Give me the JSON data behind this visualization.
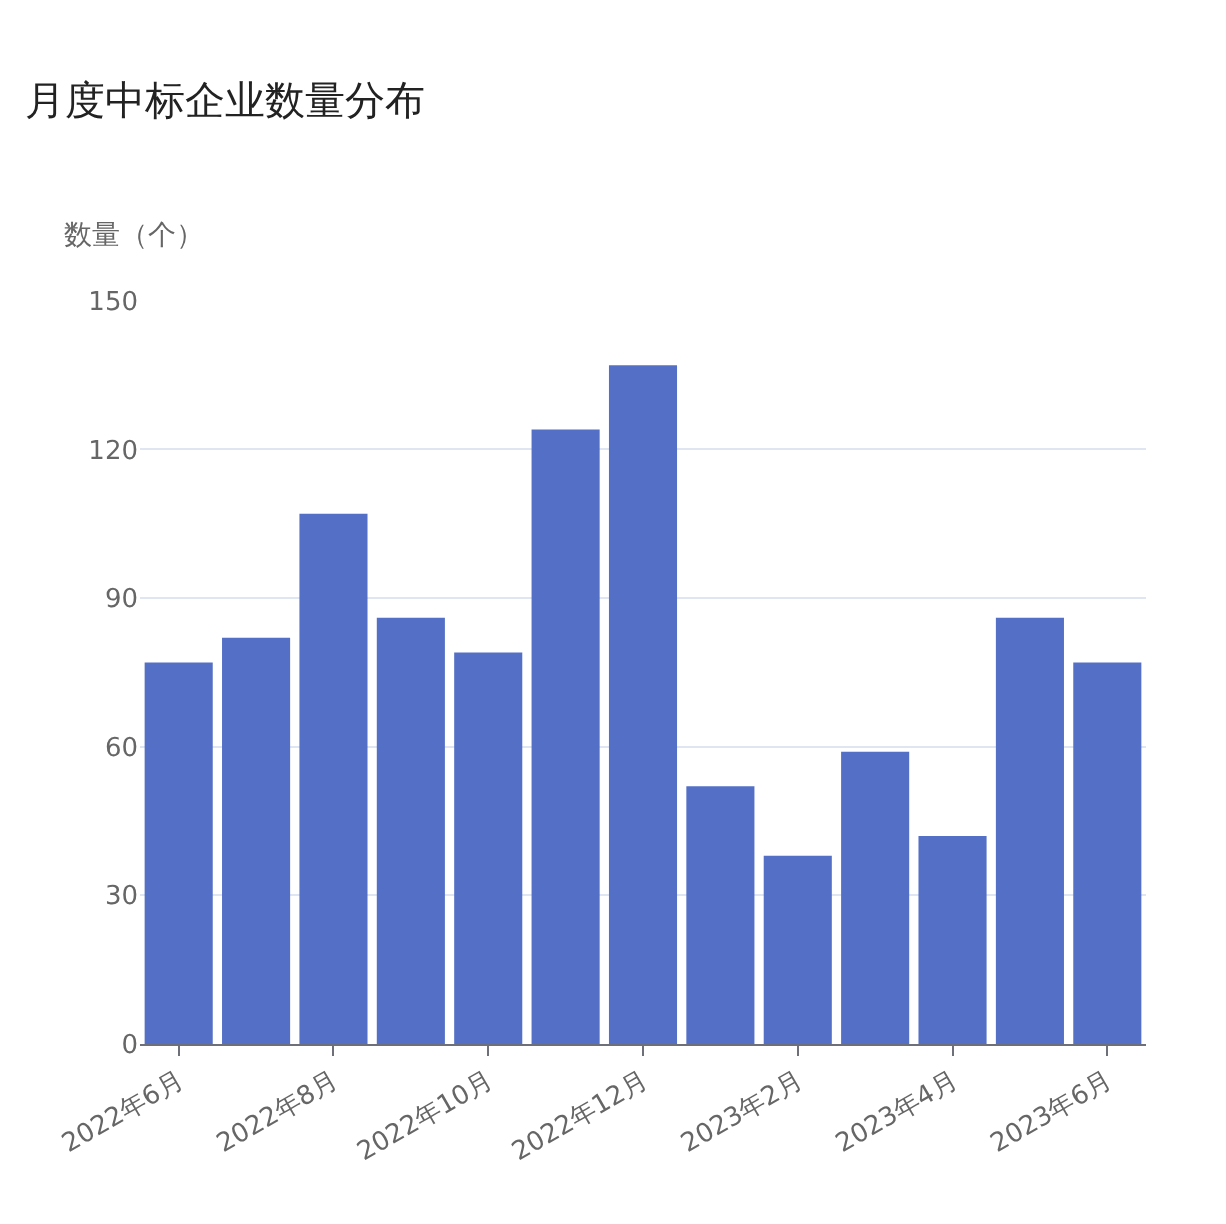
{
  "chart_data": {
    "type": "bar",
    "title": "月度中标企业数量分布",
    "ylabel": "数量（个）",
    "categories": [
      "2022年6月",
      null,
      "2022年8月",
      null,
      "2022年10月",
      null,
      "2022年12月",
      null,
      "2023年2月",
      null,
      "2023年4月",
      null,
      "2023年6月"
    ],
    "series": [
      {
        "color": "#5470c6",
        "values": [
          77,
          82,
          107,
          86,
          79,
          124,
          137,
          52,
          38,
          59,
          42,
          86,
          77
        ]
      }
    ],
    "ylim": [
      0,
      150
    ],
    "yticks": [
      0,
      30,
      60,
      90,
      120,
      150
    ],
    "grid": "y"
  }
}
